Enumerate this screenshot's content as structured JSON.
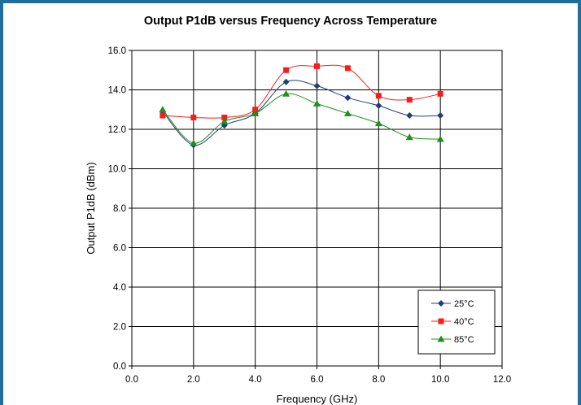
{
  "chart_data": {
    "type": "line",
    "title": "Output P1dB versus Frequency Across Temperature",
    "xlabel": "Frequency (GHz)",
    "ylabel": "Output P1dB (dBm)",
    "xlim": [
      0,
      12
    ],
    "ylim": [
      0,
      16
    ],
    "x_ticks": [
      "0.0",
      "2.0",
      "4.0",
      "6.0",
      "8.0",
      "10.0",
      "12.0"
    ],
    "y_ticks": [
      "0.0",
      "2.0",
      "4.0",
      "6.0",
      "8.0",
      "10.0",
      "12.0",
      "14.0",
      "16.0"
    ],
    "grid": true,
    "legend_position": "bottom-right",
    "x": [
      1,
      2,
      3,
      4,
      5,
      6,
      7,
      8,
      9,
      10
    ],
    "series": [
      {
        "name": "25°C",
        "color": "#1f3f7a",
        "marker": "diamond",
        "values": [
          12.9,
          11.2,
          12.2,
          12.8,
          14.4,
          14.2,
          13.6,
          13.2,
          12.7,
          12.7
        ]
      },
      {
        "name": "40°C",
        "color": "#ff1a1a",
        "marker": "square",
        "values": [
          12.7,
          12.6,
          12.6,
          13.0,
          15.0,
          15.2,
          15.1,
          13.7,
          13.5,
          13.8
        ]
      },
      {
        "name": "85°C",
        "color": "#1f8f1f",
        "marker": "triangle",
        "values": [
          13.0,
          11.3,
          12.4,
          12.8,
          13.8,
          13.3,
          12.8,
          12.3,
          11.6,
          11.5
        ]
      }
    ]
  }
}
